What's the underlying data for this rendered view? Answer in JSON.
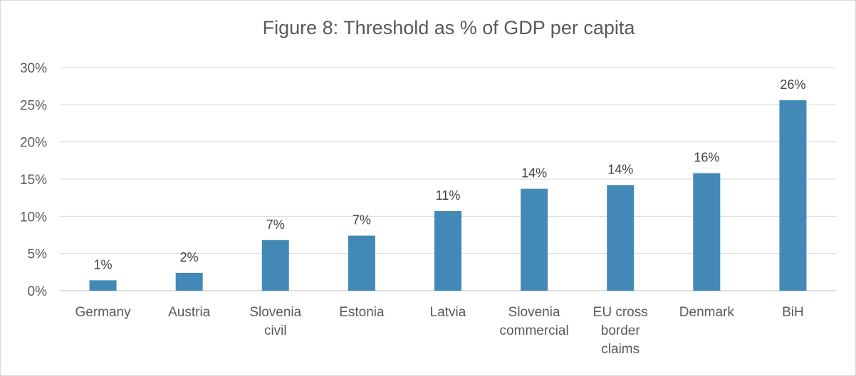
{
  "chart_data": {
    "type": "bar",
    "title": "Figure 8: Threshold as % of GDP per capita",
    "xlabel": "",
    "ylabel": "",
    "ylim": [
      0,
      30
    ],
    "yticks": [
      "0%",
      "5%",
      "10%",
      "15%",
      "20%",
      "25%",
      "30%"
    ],
    "grid": true,
    "bar_color": "#4289b8",
    "categories": [
      [
        "Germany"
      ],
      [
        "Austria"
      ],
      [
        "Slovenia",
        "civil"
      ],
      [
        "Estonia"
      ],
      [
        "Latvia"
      ],
      [
        "Slovenia",
        "commercial"
      ],
      [
        "EU cross",
        "border",
        "claims"
      ],
      [
        "Denmark"
      ],
      [
        "BiH"
      ]
    ],
    "values": [
      1.4,
      2.4,
      6.8,
      7.4,
      10.7,
      13.7,
      14.2,
      15.8,
      25.6
    ],
    "data_labels": [
      "1%",
      "2%",
      "7%",
      "7%",
      "11%",
      "14%",
      "14%",
      "16%",
      "26%"
    ]
  }
}
